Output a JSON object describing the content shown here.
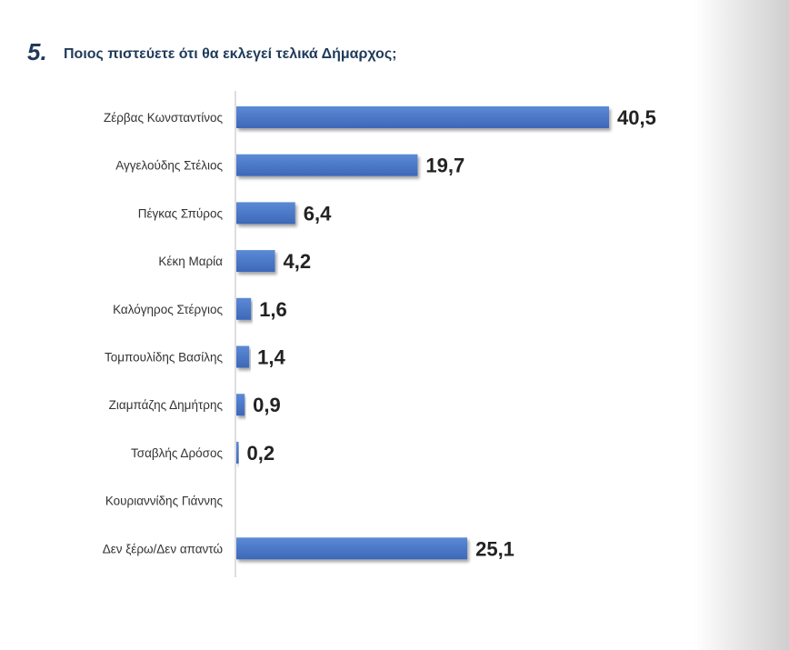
{
  "question": {
    "number": "5.",
    "text": "Ποιος πιστεύετε ότι θα εκλεγεί τελικά Δήμαρχος;"
  },
  "chart_data": {
    "type": "bar",
    "orientation": "horizontal",
    "title": "",
    "categories": [
      "Ζέρβας Κωνσταντίνος",
      "Αγγελούδης Στέλιος",
      "Πέγκας Σπύρος",
      "Κέκη Μαρία",
      "Καλόγηρος Στέργιος",
      "Τομπουλίδης Βασίλης",
      "Ζιαμπάζης Δημήτρης",
      "Τσαβλής Δρόσος",
      "Κουριαννίδης Γιάννης",
      "Δεν ξέρω/Δεν απαντώ"
    ],
    "values": [
      40.5,
      19.7,
      6.4,
      4.2,
      1.6,
      1.4,
      0.9,
      0.2,
      null,
      25.1
    ],
    "value_labels": [
      "40,5",
      "19,7",
      "6,4",
      "4,2",
      "1,6",
      "1,4",
      "0,9",
      "0,2",
      "",
      "25,1"
    ],
    "xlim": [
      0,
      40.5
    ],
    "grid": false,
    "bar_color": "#4472c4"
  }
}
